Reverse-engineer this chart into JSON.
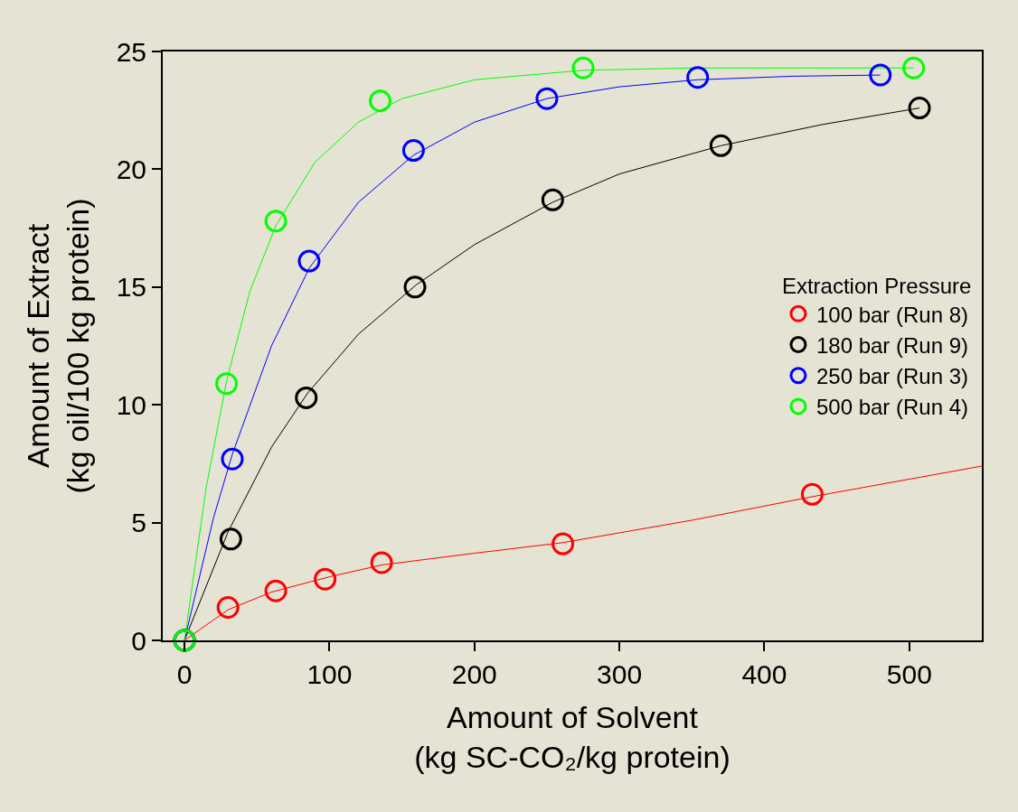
{
  "chart_data": {
    "type": "scatter",
    "xlabel": "Amount of Solvent\n(kg SC-CO₂/kg protein)",
    "ylabel": "Amount of Extract\n(kg oil/100 kg protein)",
    "legend_title": "Extraction Pressure",
    "legend": "right",
    "marker": "circle",
    "grid": false,
    "xlim": [
      -15,
      550
    ],
    "xticks": [
      0,
      100,
      200,
      300,
      400,
      500
    ],
    "ylim": [
      0,
      25
    ],
    "yticks": [
      0,
      5,
      10,
      15,
      20,
      25
    ],
    "series": [
      {
        "type": "line",
        "marker": "none",
        "color": "#ff0000",
        "x": [
          0,
          30,
          60,
          100,
          136,
          200,
          261,
          350,
          433,
          550
        ],
        "values": [
          0,
          1.3,
          2.05,
          2.7,
          3.2,
          3.7,
          4.15,
          5.1,
          6.1,
          7.4
        ]
      },
      {
        "type": "line",
        "marker": "none",
        "color": "#000000",
        "x": [
          0,
          30,
          60,
          85,
          120,
          160,
          200,
          254,
          300,
          370,
          440,
          507
        ],
        "values": [
          0,
          4.6,
          8.2,
          10.5,
          13,
          15.1,
          16.8,
          18.6,
          19.8,
          21,
          21.9,
          22.6
        ]
      },
      {
        "type": "line",
        "marker": "none",
        "color": "#0000ff",
        "x": [
          0,
          20,
          33,
          60,
          86,
          120,
          158,
          200,
          250,
          300,
          354,
          420,
          480
        ],
        "values": [
          0,
          5.2,
          7.9,
          12.5,
          15.8,
          18.6,
          20.6,
          22,
          23,
          23.5,
          23.8,
          23.95,
          24
        ]
      },
      {
        "type": "line",
        "marker": "none",
        "color": "#00ff00",
        "x": [
          0,
          15,
          29,
          45,
          63,
          90,
          120,
          150,
          200,
          275,
          350,
          503
        ],
        "values": [
          0,
          6.5,
          11,
          14.8,
          17.6,
          20.3,
          22,
          23,
          23.8,
          24.2,
          24.3,
          24.3
        ]
      },
      {
        "name": "100 bar (Run 8)",
        "color": "#ff0000",
        "x": [
          0,
          30,
          63,
          97,
          136,
          261,
          433
        ],
        "values": [
          0,
          1.4,
          2.1,
          2.6,
          3.3,
          4.1,
          6.2
        ]
      },
      {
        "name": "180 bar (Run 9)",
        "color": "#000000",
        "x": [
          0,
          32,
          84,
          159,
          254,
          370,
          507
        ],
        "values": [
          0,
          4.3,
          10.3,
          15.0,
          18.7,
          21.0,
          22.6
        ]
      },
      {
        "name": "250 bar (Run 3)",
        "color": "#0000ff",
        "x": [
          0,
          33,
          86,
          158,
          250,
          354,
          480
        ],
        "values": [
          0,
          7.7,
          16.1,
          20.8,
          23.0,
          23.9,
          24.0
        ]
      },
      {
        "name": "500 bar (Run 4)",
        "color": "#00ff00",
        "x": [
          0,
          29,
          63,
          135,
          275,
          503
        ],
        "values": [
          0,
          10.9,
          17.8,
          22.9,
          24.3,
          24.3
        ]
      }
    ]
  }
}
